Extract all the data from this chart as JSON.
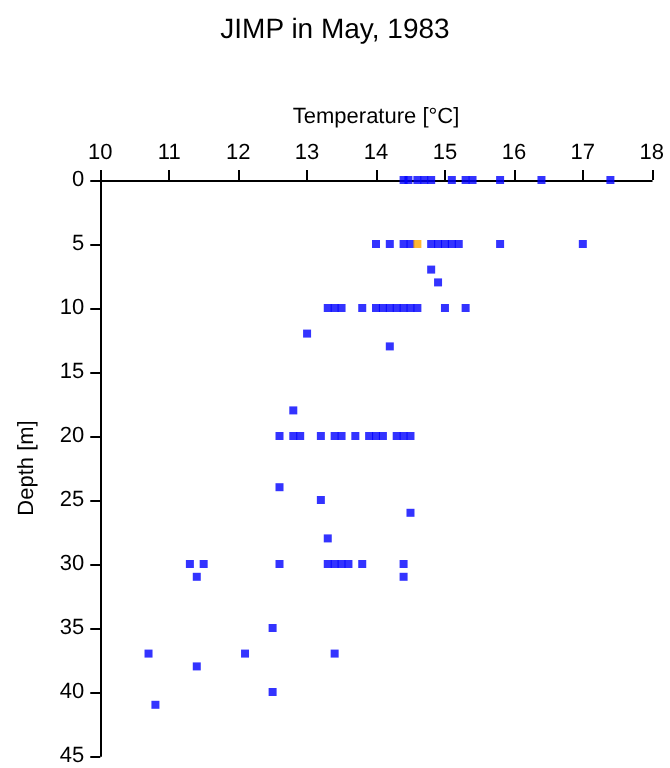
{
  "chart_data": {
    "type": "scatter",
    "title": "JIMP in May, 1983",
    "xlabel": "Temperature [°C]",
    "ylabel": "Depth [m]",
    "xlim": [
      10,
      18
    ],
    "xticks": [
      10,
      11,
      12,
      13,
      14,
      15,
      16,
      17,
      18
    ],
    "ylim": [
      45,
      0
    ],
    "yticks": [
      0,
      5,
      10,
      15,
      20,
      25,
      30,
      35,
      40,
      45
    ],
    "grid": false,
    "marker": "square",
    "series": [
      {
        "color": "#0000ff",
        "x": [
          14.4,
          14.47,
          14.6,
          14.7,
          14.8,
          15.1,
          15.3,
          15.4,
          15.8,
          16.4,
          17.4,
          14.0,
          14.2,
          14.4,
          14.5,
          14.8,
          14.9,
          15.0,
          15.1,
          15.2,
          15.8,
          17.0,
          14.8,
          14.9,
          13.3,
          13.4,
          13.5,
          13.8,
          14.0,
          14.1,
          14.2,
          14.3,
          14.4,
          14.5,
          14.6,
          15.0,
          15.3,
          13.0,
          14.2,
          12.8,
          12.6,
          12.8,
          12.9,
          13.2,
          13.4,
          13.5,
          13.7,
          13.9,
          14.0,
          14.1,
          14.3,
          14.4,
          14.5,
          12.6,
          13.2,
          14.5,
          13.3,
          11.3,
          11.5,
          12.6,
          13.3,
          13.4,
          13.5,
          13.6,
          13.8,
          14.4,
          11.4,
          14.4,
          12.5,
          10.7,
          12.1,
          13.4,
          11.4,
          12.5,
          10.8
        ],
        "values": [
          0,
          0,
          0,
          0,
          0,
          0,
          0,
          0,
          0,
          0,
          0,
          5,
          5,
          5,
          5,
          5,
          5,
          5,
          5,
          5,
          5,
          5,
          7,
          8,
          10,
          10,
          10,
          10,
          10,
          10,
          10,
          10,
          10,
          10,
          10,
          10,
          10,
          12,
          13,
          18,
          20,
          20,
          20,
          20,
          20,
          20,
          20,
          20,
          20,
          20,
          20,
          20,
          20,
          24,
          25,
          26,
          28,
          30,
          30,
          30,
          30,
          30,
          30,
          30,
          30,
          30,
          31,
          31,
          35,
          37,
          37,
          37,
          38,
          40,
          41
        ]
      },
      {
        "color": "#ffa500",
        "x": [
          14.6
        ],
        "values": [
          5
        ]
      }
    ]
  }
}
